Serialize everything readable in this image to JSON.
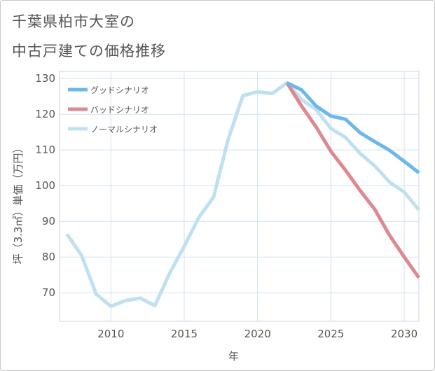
{
  "title_line1": "千葉県柏市大室の",
  "title_line2": "中古戸建ての価格推移",
  "chart_data": {
    "type": "line",
    "title": "千葉県柏市大室の中古戸建ての価格推移",
    "xlabel": "年",
    "ylabel": "坪（3.3㎡）単価（万円）",
    "xlim": [
      2006.5,
      2031
    ],
    "ylim": [
      62,
      132
    ],
    "xticks": [
      2010,
      2015,
      2020,
      2025,
      2030
    ],
    "yticks": [
      70,
      80,
      90,
      100,
      110,
      120,
      130
    ],
    "grid": true,
    "legend_position": "top-left",
    "series": [
      {
        "name": "グッドシナリオ",
        "color": "#6cb8ea",
        "x": [
          2022,
          2023,
          2024,
          2025,
          2026,
          2027,
          2028,
          2029,
          2030,
          2031
        ],
        "values": [
          128.8,
          126.8,
          122.3,
          119.5,
          118.6,
          114.8,
          112.3,
          109.9,
          106.8,
          103.6
        ]
      },
      {
        "name": "バッドシナリオ",
        "color": "#de8890",
        "x": [
          2022,
          2023,
          2024,
          2025,
          2026,
          2027,
          2028,
          2029,
          2030,
          2031
        ],
        "values": [
          128.8,
          122.3,
          116.4,
          109.6,
          104.3,
          98.6,
          93.3,
          86.1,
          80.0,
          74.2
        ]
      },
      {
        "name": "ノーマルシナリオ",
        "color": "#bfe0ef",
        "x": [
          2007,
          2008,
          2009,
          2010,
          2011,
          2012,
          2013,
          2014,
          2015,
          2016,
          2017,
          2018,
          2019,
          2020,
          2021,
          2022,
          2023,
          2024,
          2025,
          2026,
          2027,
          2028,
          2029,
          2030,
          2031
        ],
        "values": [
          86.4,
          80.5,
          69.6,
          66.2,
          67.8,
          68.5,
          66.4,
          75.4,
          83.0,
          91.1,
          96.8,
          113.0,
          125.2,
          126.3,
          125.8,
          128.8,
          124.1,
          121.3,
          116.0,
          113.5,
          109.0,
          105.5,
          101.0,
          98.2,
          93.2
        ]
      }
    ]
  }
}
